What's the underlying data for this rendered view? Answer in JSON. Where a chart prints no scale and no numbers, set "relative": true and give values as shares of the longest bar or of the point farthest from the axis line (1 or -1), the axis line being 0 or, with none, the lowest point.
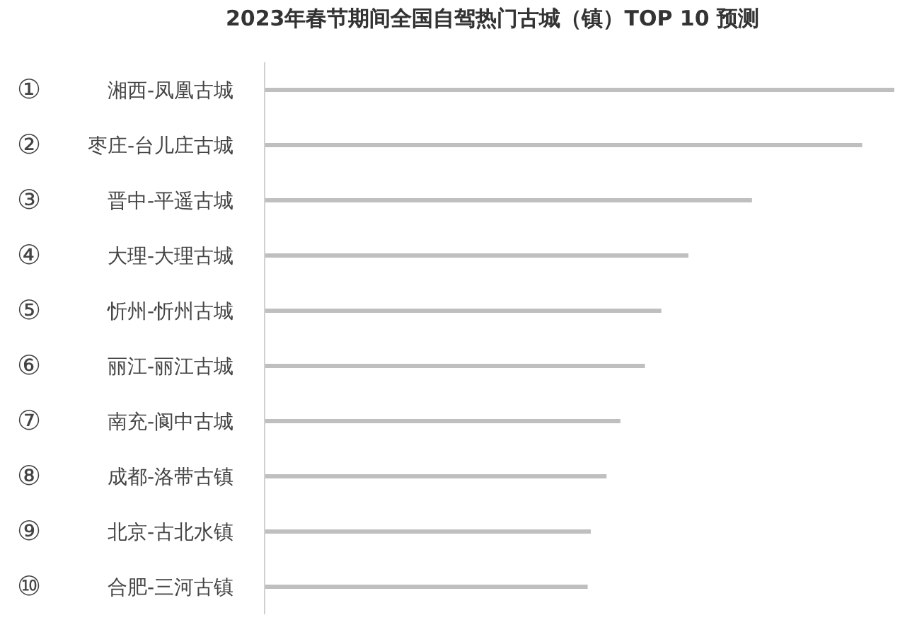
{
  "chart_data": {
    "type": "bar",
    "orientation": "horizontal",
    "relative": true,
    "title": "2023年春节期间全国自驾热门古城（镇）TOP 10 预测",
    "categories": [
      "① 湘西-凤凰古城",
      "② 枣庄-台儿庄古城",
      "③ 晋中-平遥古城",
      "④ 大理-大理古城",
      "⑤ 忻州-忻州古城",
      "⑥ 丽江-丽江古城",
      "⑦ 南充-阆中古城",
      "⑧ 成都-洛带古镇",
      "⑨ 北京-古北水镇",
      "⑩ 合肥-三河古镇"
    ],
    "values": [
      1,
      0.949,
      0.774,
      0.673,
      0.63,
      0.604,
      0.565,
      0.543,
      0.518,
      0.513
    ],
    "color": "#bfbfbf",
    "grid": false,
    "legend": false
  }
}
